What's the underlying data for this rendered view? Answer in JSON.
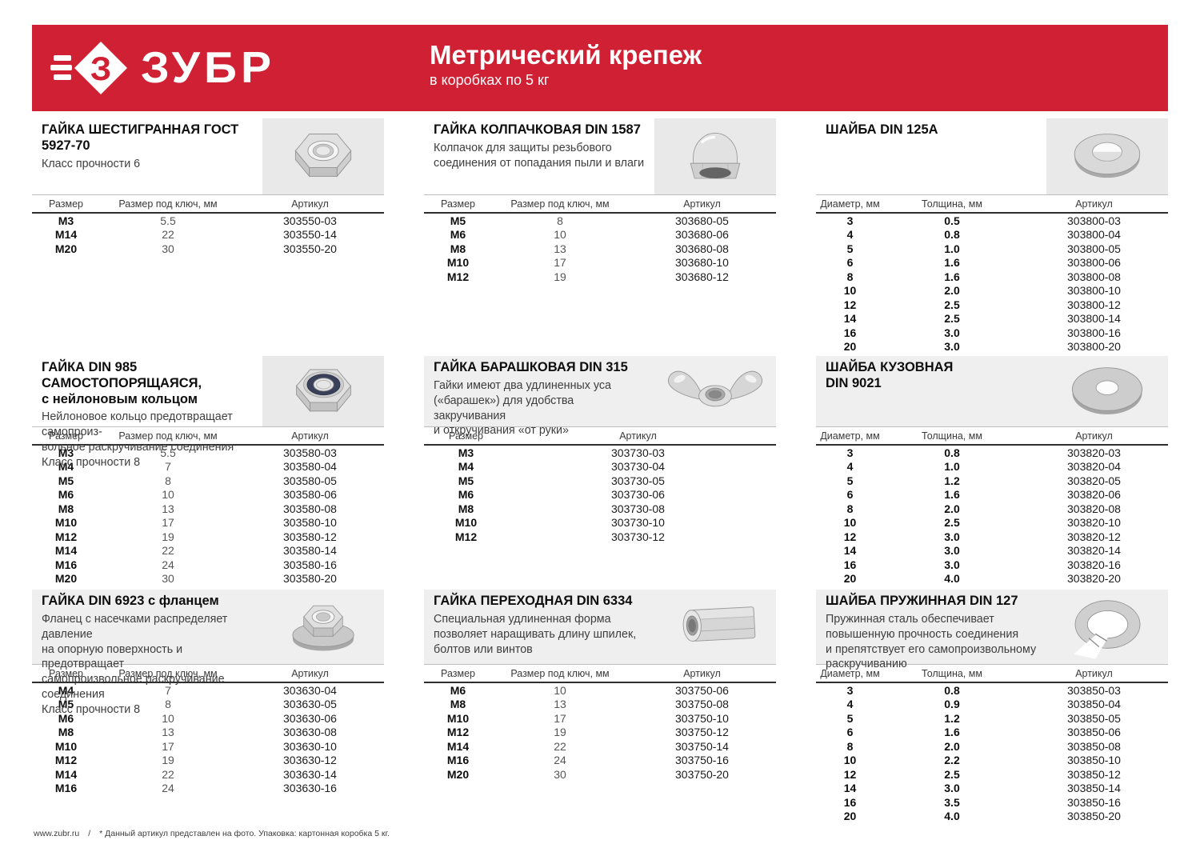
{
  "header": {
    "brand": "ЗУБР",
    "title": "Метрический крепеж",
    "subtitle": "в коробках по 5 кг",
    "brand_color": "#d02033"
  },
  "footer": {
    "url": "www.zubr.ru",
    "separator": "/",
    "note": "* Данный артикул представлен на фото. Упаковка: картонная коробка 5 кг."
  },
  "sections": [
    {
      "id": "hex-nut-gost-5927-70",
      "title_lines": [
        "ГАЙКА ШЕСТИГРАННАЯ ГОСТ 5927-70"
      ],
      "desc_lines": [
        "Класс прочности 6"
      ],
      "photo": "hex-nut",
      "columns": [
        "Размер",
        "Размер под ключ, мм",
        "Артикул"
      ],
      "rows": [
        [
          "М3",
          "5.5",
          "303550-03"
        ],
        [
          "М14",
          "22",
          "303550-14"
        ],
        [
          "М20",
          "30",
          "303550-20"
        ]
      ]
    },
    {
      "id": "cap-nut-din-1587",
      "title_lines": [
        "ГАЙКА КОЛПАЧКОВАЯ DIN 1587"
      ],
      "desc_lines": [
        "Колпачок для защиты резьбового",
        "соединения от попадания пыли и влаги"
      ],
      "photo": "cap-nut",
      "columns": [
        "Размер",
        "Размер под ключ, мм",
        "Артикул"
      ],
      "rows": [
        [
          "М5",
          "8",
          "303680-05"
        ],
        [
          "М6",
          "10",
          "303680-06"
        ],
        [
          "М8",
          "13",
          "303680-08"
        ],
        [
          "М10",
          "17",
          "303680-10"
        ],
        [
          "М12",
          "19",
          "303680-12"
        ]
      ]
    },
    {
      "id": "washer-din-125a",
      "title_lines": [
        "ШАЙБА DIN 125A"
      ],
      "desc_lines": [],
      "photo": "flat-washer",
      "columns": [
        "Диаметр, мм",
        "Толщина, мм",
        "Артикул"
      ],
      "rows": [
        [
          "3",
          "0.5",
          "303800-03"
        ],
        [
          "4",
          "0.8",
          "303800-04"
        ],
        [
          "5",
          "1.0",
          "303800-05"
        ],
        [
          "6",
          "1.6",
          "303800-06"
        ],
        [
          "8",
          "1.6",
          "303800-08"
        ],
        [
          "10",
          "2.0",
          "303800-10"
        ],
        [
          "12",
          "2.5",
          "303800-12"
        ],
        [
          "14",
          "2.5",
          "303800-14"
        ],
        [
          "16",
          "3.0",
          "303800-16"
        ],
        [
          "20",
          "3.0",
          "303800-20"
        ]
      ]
    },
    {
      "id": "lock-nut-din-985",
      "title_lines": [
        "ГАЙКА DIN 985 САМОСТОПОРЯЩАЯСЯ,",
        "с нейлоновым кольцом"
      ],
      "desc_lines": [
        "Нейлоновое кольцо предотвращает самопроиз-",
        "вольное раскручивание соединения",
        "Класс прочности 8"
      ],
      "photo": "lock-nut",
      "columns": [
        "Размер",
        "Размер под ключ, мм",
        "Артикул"
      ],
      "rows": [
        [
          "М3",
          "5.5",
          "303580-03"
        ],
        [
          "М4",
          "7",
          "303580-04"
        ],
        [
          "М5",
          "8",
          "303580-05"
        ],
        [
          "М6",
          "10",
          "303580-06"
        ],
        [
          "М8",
          "13",
          "303580-08"
        ],
        [
          "М10",
          "17",
          "303580-10"
        ],
        [
          "М12",
          "19",
          "303580-12"
        ],
        [
          "М14",
          "22",
          "303580-14"
        ],
        [
          "М16",
          "24",
          "303580-16"
        ],
        [
          "М20",
          "30",
          "303580-20"
        ]
      ]
    },
    {
      "id": "wing-nut-din-315",
      "title_lines": [
        "ГАЙКА БАРАШКОВАЯ DIN 315"
      ],
      "desc_lines": [
        "Гайки имеют два удлиненных уса",
        "(«барашек») для удобства закручивания",
        "и откручивания «от руки»"
      ],
      "photo": "wing-nut",
      "columns": [
        "Размер",
        "Артикул"
      ],
      "rows": [
        [
          "М3",
          "303730-03"
        ],
        [
          "М4",
          "303730-04"
        ],
        [
          "М5",
          "303730-05"
        ],
        [
          "М6",
          "303730-06"
        ],
        [
          "М8",
          "303730-08"
        ],
        [
          "М10",
          "303730-10"
        ],
        [
          "М12",
          "303730-12"
        ]
      ]
    },
    {
      "id": "body-washer-din-9021",
      "title_lines": [
        "ШАЙБА КУЗОВНАЯ",
        "DIN 9021"
      ],
      "desc_lines": [],
      "photo": "fender-washer",
      "columns": [
        "Диаметр, мм",
        "Толщина, мм",
        "Артикул"
      ],
      "rows": [
        [
          "3",
          "0.8",
          "303820-03"
        ],
        [
          "4",
          "1.0",
          "303820-04"
        ],
        [
          "5",
          "1.2",
          "303820-05"
        ],
        [
          "6",
          "1.6",
          "303820-06"
        ],
        [
          "8",
          "2.0",
          "303820-08"
        ],
        [
          "10",
          "2.5",
          "303820-10"
        ],
        [
          "12",
          "3.0",
          "303820-12"
        ],
        [
          "14",
          "3.0",
          "303820-14"
        ],
        [
          "16",
          "3.0",
          "303820-16"
        ],
        [
          "20",
          "4.0",
          "303820-20"
        ]
      ]
    },
    {
      "id": "flange-nut-din-6923",
      "title_lines": [
        "ГАЙКА DIN 6923 с фланцем"
      ],
      "desc_lines": [
        "Фланец с насечками распределяет давление",
        "на опорную поверхность и предотвращает",
        "самопроизвольное раскручивание соединения",
        "Класс прочности 8"
      ],
      "photo": "flange-nut",
      "columns": [
        "Размер",
        "Размер под ключ, мм",
        "Артикул"
      ],
      "rows": [
        [
          "М4",
          "7",
          "303630-04"
        ],
        [
          "М5",
          "8",
          "303630-05"
        ],
        [
          "М6",
          "10",
          "303630-06"
        ],
        [
          "М8",
          "13",
          "303630-08"
        ],
        [
          "М10",
          "17",
          "303630-10"
        ],
        [
          "М12",
          "19",
          "303630-12"
        ],
        [
          "М14",
          "22",
          "303630-14"
        ],
        [
          "М16",
          "24",
          "303630-16"
        ]
      ]
    },
    {
      "id": "coupling-nut-din-6334",
      "title_lines": [
        "ГАЙКА ПЕРЕХОДНАЯ DIN 6334"
      ],
      "desc_lines": [
        "Специальная удлиненная форма",
        "позволяет наращивать длину шпилек,",
        "болтов или винтов"
      ],
      "photo": "coupling-nut",
      "columns": [
        "Размер",
        "Размер под ключ, мм",
        "Артикул"
      ],
      "rows": [
        [
          "М6",
          "10",
          "303750-06"
        ],
        [
          "М8",
          "13",
          "303750-08"
        ],
        [
          "М10",
          "17",
          "303750-10"
        ],
        [
          "М12",
          "19",
          "303750-12"
        ],
        [
          "М14",
          "22",
          "303750-14"
        ],
        [
          "М16",
          "24",
          "303750-16"
        ],
        [
          "М20",
          "30",
          "303750-20"
        ]
      ]
    },
    {
      "id": "spring-washer-din-127",
      "title_lines": [
        "ШАЙБА ПРУЖИННАЯ DIN 127"
      ],
      "desc_lines": [
        "Пружинная сталь обеспечивает",
        "повышенную прочность соединения",
        "и препятствует его самопроизвольному",
        "раскручиванию"
      ],
      "photo": "spring-washer",
      "columns": [
        "Диаметр, мм",
        "Толщина, мм",
        "Артикул"
      ],
      "rows": [
        [
          "3",
          "0.8",
          "303850-03"
        ],
        [
          "4",
          "0.9",
          "303850-04"
        ],
        [
          "5",
          "1.2",
          "303850-05"
        ],
        [
          "6",
          "1.6",
          "303850-06"
        ],
        [
          "8",
          "2.0",
          "303850-08"
        ],
        [
          "10",
          "2.2",
          "303850-10"
        ],
        [
          "12",
          "2.5",
          "303850-12"
        ],
        [
          "14",
          "3.0",
          "303850-14"
        ],
        [
          "16",
          "3.5",
          "303850-16"
        ],
        [
          "20",
          "4.0",
          "303850-20"
        ]
      ]
    }
  ]
}
